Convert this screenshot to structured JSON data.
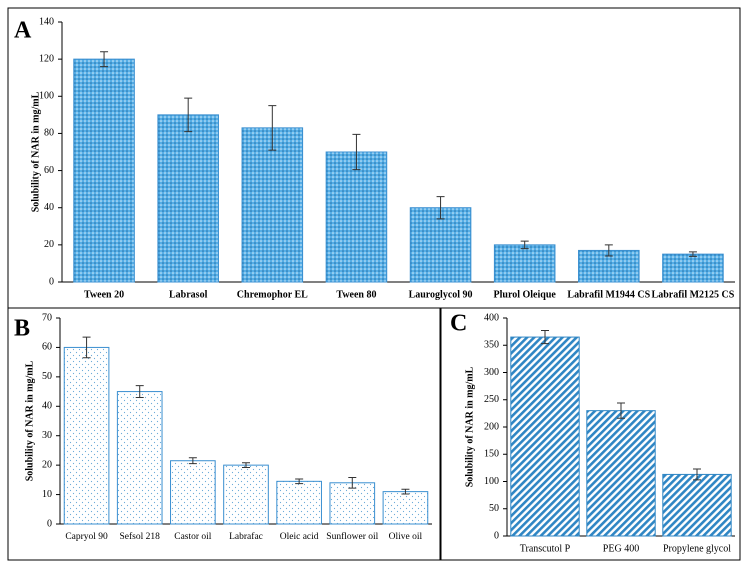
{
  "chart_data": [
    {
      "type": "bar",
      "label": "A",
      "y_label": "Solubility of NAR in mg/mL",
      "categories": [
        "Tween 20",
        "Labrasol",
        "Chremophor EL",
        "Tween 80",
        "Lauroglycol 90",
        "Plurol Oleique",
        "Labrafil M1944 CS",
        "Labrafil M2125 CS"
      ],
      "values": [
        120,
        90,
        83,
        70,
        40,
        20,
        17,
        15
      ],
      "errors": [
        4,
        9,
        12,
        9.5,
        6,
        2,
        3,
        1.2
      ],
      "color": "#3a8fd0",
      "pattern": "dots",
      "ylim": [
        0,
        140
      ],
      "yticks": [
        0,
        20,
        40,
        60,
        80,
        100,
        120,
        140
      ]
    },
    {
      "type": "bar",
      "label": "B",
      "y_label": "Solubility of NAR in mg/mL",
      "categories": [
        "Capryol 90",
        "Sefsol 218",
        "Castor oil",
        "Labrafac",
        "Oleic acid",
        "Sunflower oil",
        "Olive oil"
      ],
      "values": [
        60,
        45,
        21.5,
        20,
        14.5,
        14,
        11
      ],
      "errors": [
        3.5,
        2,
        1,
        0.8,
        0.8,
        1.8,
        0.8
      ],
      "color": "#3a8fd0",
      "pattern": "light-dots",
      "ylim": [
        0,
        70
      ],
      "yticks": [
        0,
        10,
        20,
        30,
        40,
        50,
        60,
        70
      ]
    },
    {
      "type": "bar",
      "label": "C",
      "y_label": "Solubility of NAR in mg/mL",
      "categories": [
        "Transcutol P",
        "PEG 400",
        "Propylene glycol"
      ],
      "values": [
        365,
        230,
        113
      ],
      "errors": [
        12,
        14,
        10
      ],
      "color": "#2f86c4",
      "pattern": "hatch",
      "ylim": [
        0,
        400
      ],
      "yticks": [
        0,
        50,
        100,
        150,
        200,
        250,
        300,
        350,
        400
      ]
    }
  ]
}
